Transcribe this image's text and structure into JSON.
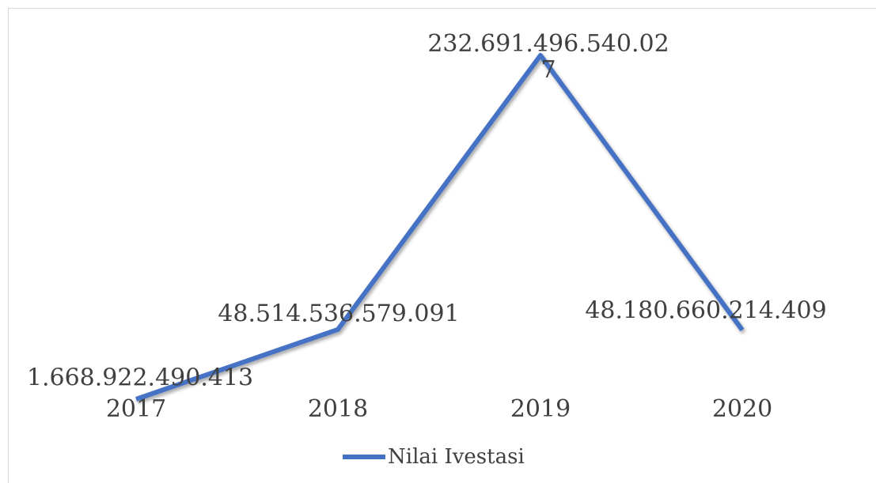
{
  "chart_data": {
    "type": "line",
    "categories": [
      "2017",
      "2018",
      "2019",
      "2020"
    ],
    "series": [
      {
        "name": "Nilai Ivestasi",
        "color": "#4472c4",
        "values": [
          1668922490413,
          48514536579091,
          232691496540027,
          48180660214409
        ],
        "value_labels": [
          "1.668.922.490.413",
          "48.514.536.579.091",
          "232.691.496.540.027",
          "48.180.660.214.409"
        ]
      }
    ],
    "legend": "bottom"
  }
}
